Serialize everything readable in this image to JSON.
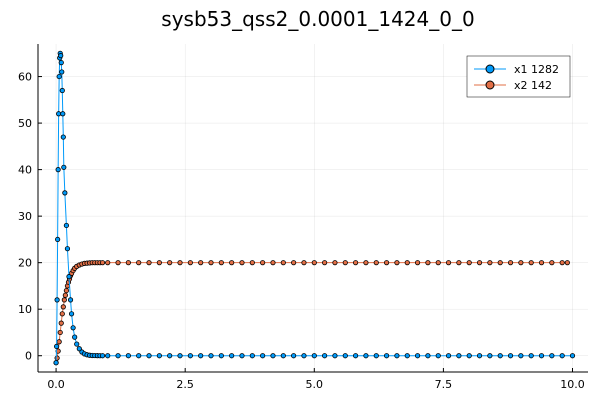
{
  "chart_data": {
    "type": "scatter",
    "title": "sysb53_qss2_0.0001_1424_0_0",
    "xlabel": "",
    "ylabel": "",
    "xlim": [
      0,
      10
    ],
    "ylim": [
      -3.5,
      67
    ],
    "xticks": [
      0,
      2.5,
      5,
      7.5,
      10
    ],
    "xtick_labels": [
      "0.0",
      "2.5",
      "5.0",
      "7.5",
      "10.0"
    ],
    "yticks": [
      0,
      10,
      20,
      30,
      40,
      50,
      60
    ],
    "ytick_labels": [
      "0",
      "10",
      "20",
      "30",
      "40",
      "50",
      "60"
    ],
    "grid": true,
    "legend_position": "top-right",
    "series": [
      {
        "name": "x1 1282",
        "color": "#009AFA",
        "marker": "circle",
        "line": true,
        "x": [
          0.0,
          0.01,
          0.02,
          0.03,
          0.04,
          0.05,
          0.06,
          0.07,
          0.08,
          0.09,
          0.1,
          0.11,
          0.12,
          0.13,
          0.14,
          0.15,
          0.17,
          0.2,
          0.22,
          0.25,
          0.28,
          0.3,
          0.33,
          0.36,
          0.4,
          0.45,
          0.5,
          0.55,
          0.6,
          0.65,
          0.7,
          0.75,
          0.8,
          0.85,
          0.9,
          1.0,
          1.2,
          1.4,
          1.6,
          1.8,
          2.0,
          2.2,
          2.4,
          2.6,
          2.8,
          3.0,
          3.2,
          3.4,
          3.6,
          3.8,
          4.0,
          4.2,
          4.4,
          4.6,
          4.8,
          5.0,
          5.2,
          5.4,
          5.6,
          5.8,
          6.0,
          6.2,
          6.4,
          6.6,
          6.8,
          7.0,
          7.2,
          7.4,
          7.6,
          7.8,
          8.0,
          8.2,
          8.4,
          8.6,
          8.8,
          9.0,
          9.2,
          9.4,
          9.6,
          9.8,
          10.0
        ],
        "y": [
          -1.5,
          2,
          12,
          25,
          40,
          52,
          60,
          64,
          65,
          64.5,
          63,
          61,
          57,
          52,
          47,
          40.5,
          35,
          28,
          23,
          17,
          12,
          9,
          6,
          4,
          2.5,
          1.5,
          0.8,
          0.4,
          0.2,
          0.1,
          0.05,
          0.03,
          0.02,
          0.01,
          0.0,
          0.0,
          0.0,
          0.0,
          0.0,
          0.0,
          0.0,
          0.0,
          0.0,
          0.0,
          0.0,
          0.0,
          0.0,
          0.0,
          0.0,
          0.0,
          0.0,
          0.0,
          0.0,
          0.0,
          0.0,
          0.0,
          0.0,
          0.0,
          0.0,
          0.0,
          0.0,
          0.0,
          0.0,
          0.0,
          0.0,
          0.0,
          0.0,
          0.0,
          0.0,
          0.0,
          0.0,
          0.0,
          0.0,
          0.0,
          0.0,
          0.0,
          0.0,
          0.0,
          0.0,
          0.0,
          0.0
        ]
      },
      {
        "name": "x2 142",
        "color": "#E26F46",
        "marker": "circle",
        "line": true,
        "x": [
          0.0,
          0.02,
          0.04,
          0.06,
          0.08,
          0.1,
          0.12,
          0.14,
          0.16,
          0.18,
          0.2,
          0.22,
          0.24,
          0.26,
          0.28,
          0.3,
          0.33,
          0.36,
          0.4,
          0.45,
          0.5,
          0.55,
          0.6,
          0.65,
          0.7,
          0.75,
          0.8,
          0.85,
          0.9,
          1.0,
          1.2,
          1.4,
          1.6,
          1.8,
          2.0,
          2.2,
          2.4,
          2.6,
          2.8,
          3.0,
          3.2,
          3.4,
          3.6,
          3.8,
          4.0,
          4.2,
          4.4,
          4.6,
          4.8,
          5.0,
          5.2,
          5.4,
          5.6,
          5.8,
          6.0,
          6.2,
          6.4,
          6.6,
          6.8,
          7.0,
          7.2,
          7.4,
          7.6,
          7.8,
          8.0,
          8.2,
          8.4,
          8.6,
          8.8,
          9.0,
          9.2,
          9.4,
          9.6,
          9.8,
          9.9
        ],
        "y": [
          -1.5,
          -0.5,
          1,
          3,
          5,
          7,
          9,
          10.5,
          12,
          13,
          14,
          15,
          15.8,
          16.5,
          17.2,
          17.7,
          18.3,
          18.8,
          19.2,
          19.5,
          19.7,
          19.85,
          19.9,
          19.95,
          20,
          20,
          20,
          20,
          20,
          20,
          20,
          20,
          20,
          20,
          20,
          20,
          20,
          20,
          20,
          20,
          20,
          20,
          20,
          20,
          20,
          20,
          20,
          20,
          20,
          20,
          20,
          20,
          20,
          20,
          20,
          20,
          20,
          20,
          20,
          20,
          20,
          20,
          20,
          20,
          20,
          20,
          20,
          20,
          20,
          20,
          20,
          20,
          20,
          20,
          20
        ]
      }
    ]
  }
}
